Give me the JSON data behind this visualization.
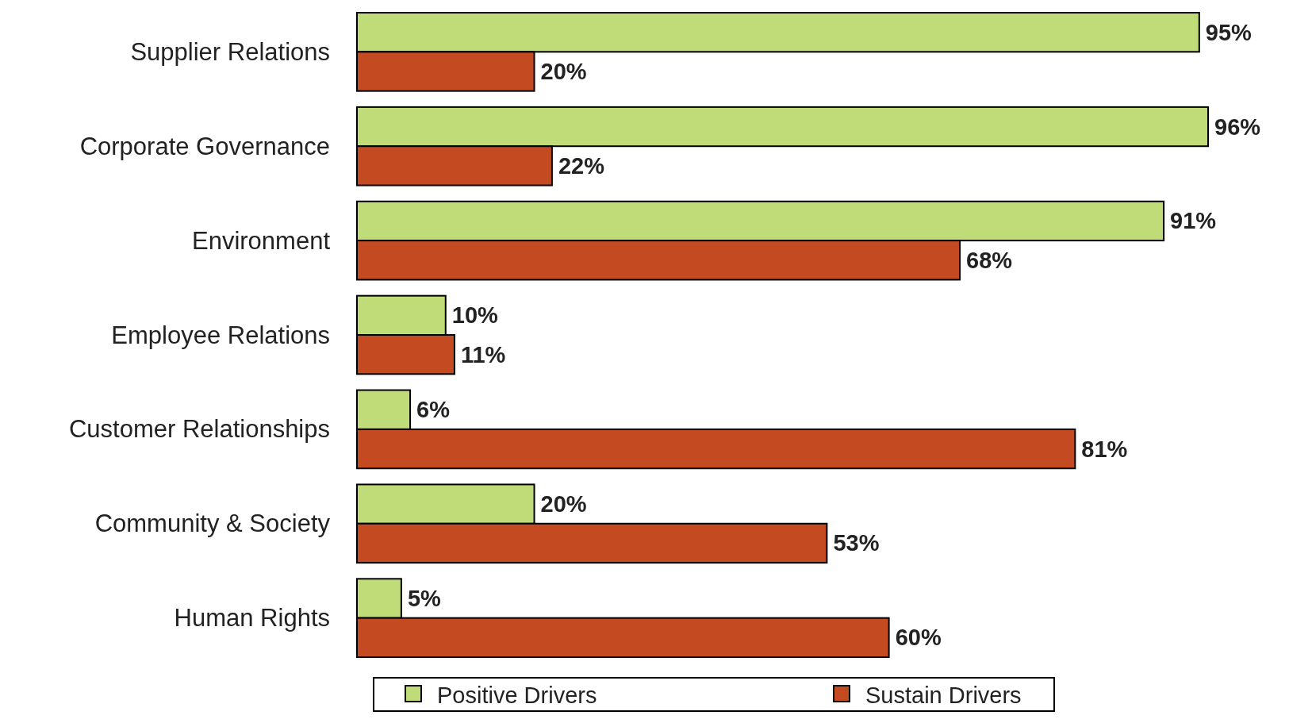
{
  "chart_data": {
    "type": "bar",
    "orientation": "horizontal",
    "categories": [
      "Supplier Relations",
      "Corporate Governance",
      "Environment",
      "Employee Relations",
      "Customer Relationships",
      "Community & Society",
      "Human Rights"
    ],
    "series": [
      {
        "name": "Positive Drivers",
        "color": "#c0dc78",
        "values": [
          95,
          96,
          91,
          10,
          6,
          20,
          5
        ],
        "value_labels": [
          "95%",
          "96%",
          "91%",
          "10%",
          "6%",
          "20%",
          "5%"
        ]
      },
      {
        "name": "Sustain Drivers",
        "color": "#c44a22",
        "values": [
          20,
          22,
          68,
          11,
          81,
          53,
          60
        ],
        "value_labels": [
          "20%",
          "22%",
          "68%",
          "11%",
          "81%",
          "53%",
          "60%"
        ]
      }
    ],
    "tick_labels": "y",
    "legend": "bottom"
  }
}
